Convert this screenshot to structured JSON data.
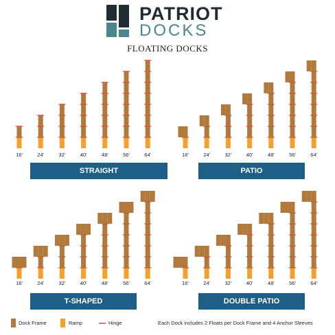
{
  "brand": {
    "name_top": "PATRIOT",
    "name_bottom": "DOCKS",
    "subtitle": "FLOATING DOCKS",
    "colors": {
      "dark": "#1f2d33",
      "teal": "#4b868f"
    }
  },
  "sizes": [
    "16'",
    "24'",
    "32'",
    "40'",
    "48'",
    "56'",
    "64'"
  ],
  "panels": [
    {
      "label": "STRAIGHT"
    },
    {
      "label": "PATIO"
    },
    {
      "label": "T-SHAPED"
    },
    {
      "label": "DOUBLE PATIO"
    }
  ],
  "legend": {
    "frame": "Dock Frame",
    "ramp": "Ramp",
    "hinge": "Hinge",
    "note": "Each Dock includes 2 Floats per Dock Frame and 4 Anchor Sleeves"
  },
  "colors": {
    "frame": "#b17a3c",
    "ramp": "#f5a02a",
    "hinge": "#e0403a",
    "banner": "#1d5f86"
  }
}
